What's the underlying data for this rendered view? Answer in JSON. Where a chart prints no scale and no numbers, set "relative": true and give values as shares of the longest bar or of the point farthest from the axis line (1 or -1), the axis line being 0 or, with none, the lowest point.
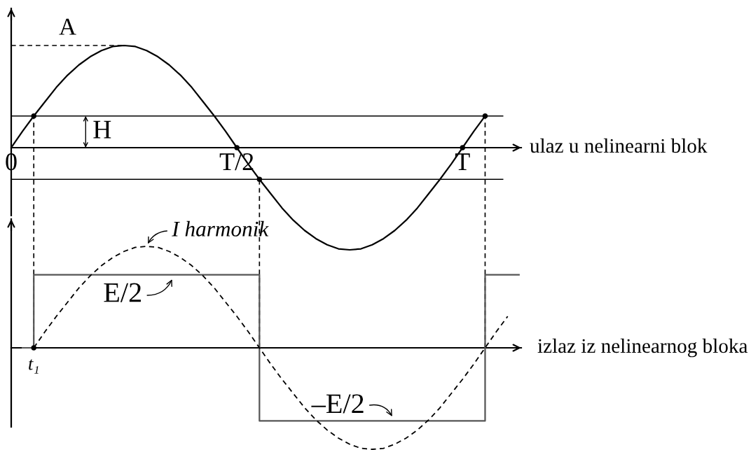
{
  "chart_data": [
    {
      "type": "line",
      "xlabel": "ulaz u nelinearni blok",
      "relative": true,
      "categories": [
        "0",
        null,
        null,
        null,
        null,
        null,
        null,
        null,
        null,
        null,
        null,
        null,
        null,
        null,
        null,
        null,
        null,
        null,
        null,
        null,
        "T/2",
        null,
        null,
        null,
        null,
        null,
        null,
        null,
        null,
        null,
        null,
        null,
        null,
        null,
        null,
        null,
        null,
        null,
        null,
        null,
        "T",
        null,
        null,
        null,
        null,
        null
      ],
      "series": [
        {
          "color": "#000000",
          "values": [
            0,
            0.16,
            0.31,
            0.45,
            0.59,
            0.71,
            0.81,
            0.89,
            0.95,
            0.99,
            1,
            0.99,
            0.95,
            0.89,
            0.81,
            0.71,
            0.59,
            0.45,
            0.31,
            0.16,
            0,
            -0.16,
            -0.31,
            -0.45,
            -0.59,
            -0.71,
            -0.81,
            -0.89,
            -0.95,
            -0.99,
            -1,
            -0.99,
            -0.95,
            -0.89,
            -0.81,
            -0.71,
            -0.59,
            -0.45,
            -0.31,
            -0.16,
            0,
            0.16,
            0.31,
            null,
            null,
            null
          ]
        },
        {
          "type": "scatter",
          "color": "#000000",
          "marker": "circle",
          "values": [
            null,
            null,
            0.31,
            null,
            null,
            null,
            null,
            null,
            null,
            null,
            null,
            null,
            null,
            null,
            null,
            null,
            null,
            null,
            null,
            null,
            0,
            null,
            -0.31,
            null,
            null,
            null,
            null,
            null,
            null,
            null,
            null,
            null,
            null,
            null,
            null,
            null,
            null,
            null,
            null,
            null,
            0,
            null,
            0.31,
            null,
            null,
            null
          ]
        }
      ],
      "ref_lines": [
        {
          "axis": "y",
          "value": 0.31,
          "label": "H"
        },
        {
          "axis": "y",
          "value": -0.31
        }
      ],
      "annotations": [
        "A"
      ]
    },
    {
      "type": "line",
      "xlabel": "izlaz iz nelinearnog bloka",
      "relative": true,
      "categories": [
        null,
        null,
        null,
        null,
        null,
        null,
        null,
        null,
        null,
        null,
        null,
        null,
        null,
        null,
        null,
        null,
        null,
        null,
        null,
        null,
        null,
        null,
        null,
        null,
        null,
        null,
        null,
        null,
        null,
        null,
        null,
        null,
        null,
        null,
        null,
        null,
        null,
        null,
        null,
        null,
        null,
        null,
        null,
        null,
        null,
        null
      ],
      "series": [
        {
          "type": "step",
          "color": "#555555",
          "values": [
            null,
            0,
            0.72,
            0.72,
            0.72,
            0.72,
            0.72,
            0.72,
            0.72,
            0.72,
            0.72,
            0.72,
            0.72,
            0.72,
            0.72,
            0.72,
            0.72,
            0.72,
            0.72,
            0.72,
            0.72,
            0.72,
            -0.72,
            -0.72,
            -0.72,
            -0.72,
            -0.72,
            -0.72,
            -0.72,
            -0.72,
            -0.72,
            -0.72,
            -0.72,
            -0.72,
            -0.72,
            -0.72,
            -0.72,
            -0.72,
            -0.72,
            -0.72,
            -0.72,
            -0.72,
            0.72,
            0.72,
            0.72,
            0.72
          ]
        },
        {
          "color": "#000000",
          "line_style": "dashed",
          "values": [
            null,
            null,
            0,
            0.16,
            0.31,
            0.45,
            0.59,
            0.71,
            0.81,
            0.89,
            0.95,
            0.99,
            1,
            0.99,
            0.95,
            0.89,
            0.81,
            0.71,
            0.59,
            0.45,
            0.31,
            0.16,
            0,
            -0.16,
            -0.31,
            -0.45,
            -0.59,
            -0.71,
            -0.81,
            -0.89,
            -0.95,
            -0.99,
            -1,
            -0.99,
            -0.95,
            -0.89,
            -0.81,
            -0.71,
            -0.59,
            -0.45,
            -0.31,
            -0.16,
            0,
            0.16,
            0.31,
            null
          ]
        },
        {
          "type": "scatter",
          "color": "#000000",
          "marker": "circle",
          "values": [
            null,
            null,
            0,
            null,
            null,
            null,
            null,
            null,
            null,
            null,
            null,
            null,
            null,
            null,
            null,
            null,
            null,
            null,
            null,
            null,
            null,
            null,
            null,
            null,
            null,
            null,
            null,
            null,
            null,
            null,
            null,
            null,
            null,
            null,
            null,
            null,
            null,
            null,
            null,
            null,
            null,
            null,
            null,
            null,
            null,
            null
          ]
        }
      ],
      "annotations": [
        "I harmonik",
        {
          "text": "E/2",
          "y": 0.72
        },
        {
          "text": "–E/2",
          "y": -0.72
        },
        "t₁"
      ]
    }
  ]
}
